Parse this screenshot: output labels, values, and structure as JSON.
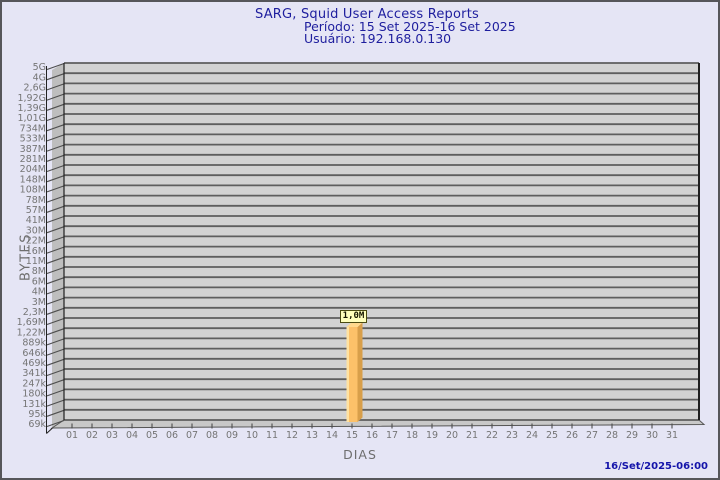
{
  "header": {
    "title": "SARG, Squid User Access Reports",
    "period": "Período: 15 Set 2025-16 Set 2025",
    "user": "Usuário: 192.168.0.130"
  },
  "footer": {
    "timestamp": "16/Set/2025-06:00"
  },
  "chart": {
    "y_axis_title": "BYTES",
    "x_axis_title": "DIAS",
    "y_ticks": [
      "5G",
      "4G",
      "2,6G",
      "1,92G",
      "1,39G",
      "1,01G",
      "734M",
      "533M",
      "387M",
      "281M",
      "204M",
      "148M",
      "108M",
      "78M",
      "57M",
      "41M",
      "30M",
      "22M",
      "16M",
      "11M",
      "8M",
      "6M",
      "4M",
      "3M",
      "2,3M",
      "1,69M",
      "1,22M",
      "889k",
      "646k",
      "469k",
      "341k",
      "247k",
      "180k",
      "131k",
      "95k",
      "69k"
    ],
    "x_ticks": [
      "01",
      "02",
      "03",
      "04",
      "05",
      "06",
      "07",
      "08",
      "09",
      "10",
      "11",
      "12",
      "13",
      "14",
      "15",
      "16",
      "17",
      "18",
      "19",
      "20",
      "21",
      "22",
      "23",
      "24",
      "25",
      "26",
      "27",
      "28",
      "29",
      "30",
      "31"
    ],
    "bar": {
      "day": "15",
      "value_label": "1,0M"
    },
    "colors": {
      "page_bg": "#e5e5f5",
      "title_text": "#1e1e9e",
      "axis_text": "#757575",
      "timestamp_text": "#1414aa",
      "plot_bg": "#d2d2d2",
      "wall": "#bebebe",
      "floor": "#c8c8c8",
      "gridline": "#5e5e5e",
      "axis_line": "#222222",
      "bar_front": "#fcc169",
      "bar_highlight": "#ffe2a2",
      "bar_side": "#d89f4a",
      "bar_top": "#ffd98c",
      "bar_label_bg": "#ffffbc"
    }
  },
  "chart_data": {
    "type": "bar",
    "title": "SARG, Squid User Access Reports",
    "subtitle": "Período: 15 Set 2025-16 Set 2025 | Usuário: 192.168.0.130",
    "xlabel": "DIAS",
    "ylabel": "BYTES",
    "categories": [
      "01",
      "02",
      "03",
      "04",
      "05",
      "06",
      "07",
      "08",
      "09",
      "10",
      "11",
      "12",
      "13",
      "14",
      "15",
      "16",
      "17",
      "18",
      "19",
      "20",
      "21",
      "22",
      "23",
      "24",
      "25",
      "26",
      "27",
      "28",
      "29",
      "30",
      "31"
    ],
    "series": [
      {
        "name": "bytes-per-day",
        "values": [
          0,
          0,
          0,
          0,
          0,
          0,
          0,
          0,
          0,
          0,
          0,
          0,
          0,
          0,
          1000000,
          0,
          0,
          0,
          0,
          0,
          0,
          0,
          0,
          0,
          0,
          0,
          0,
          0,
          0,
          0,
          0
        ]
      }
    ],
    "data_labels": [
      {
        "category": "15",
        "label": "1,0M",
        "value_bytes": 1000000
      }
    ],
    "y_scale": "log",
    "y_tick_labels": [
      "5G",
      "4G",
      "2,6G",
      "1,92G",
      "1,39G",
      "1,01G",
      "734M",
      "533M",
      "387M",
      "281M",
      "204M",
      "148M",
      "108M",
      "78M",
      "57M",
      "41M",
      "30M",
      "22M",
      "16M",
      "11M",
      "8M",
      "6M",
      "4M",
      "3M",
      "2,3M",
      "1,69M",
      "1,22M",
      "889k",
      "646k",
      "469k",
      "341k",
      "247k",
      "180k",
      "131k",
      "95k",
      "69k"
    ],
    "ylim_labels": [
      "69k",
      "5G"
    ],
    "grid": true,
    "legend": false,
    "style": "3d-bar",
    "timestamp": "16/Set/2025-06:00"
  }
}
